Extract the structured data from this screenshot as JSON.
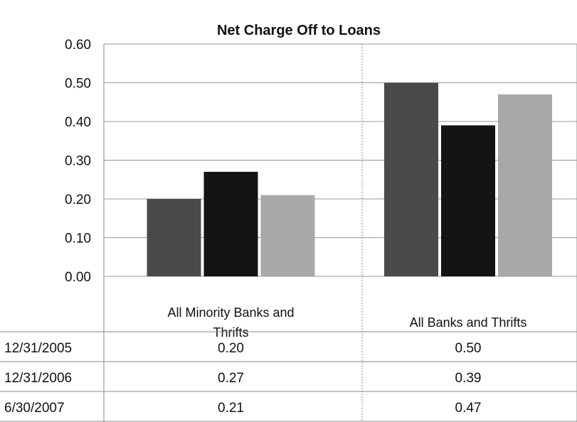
{
  "chart_data": {
    "type": "bar",
    "title": "Net Charge Off to Loans",
    "categories": [
      [
        "All Minority Banks and",
        "Thrifts"
      ],
      [
        "All Banks and Thrifts"
      ]
    ],
    "series": [
      {
        "name": "12/31/2005",
        "values": [
          0.2,
          0.5
        ],
        "color": "#4a4a4a"
      },
      {
        "name": "12/31/2006",
        "values": [
          0.27,
          0.39
        ],
        "color": "#141414"
      },
      {
        "name": "6/30/2007",
        "values": [
          0.21,
          0.47
        ],
        "color": "#a8a8a8"
      }
    ],
    "yticks": [
      "0.00",
      "0.10",
      "0.20",
      "0.30",
      "0.40",
      "0.50",
      "0.60"
    ],
    "ylim": [
      0,
      0.6
    ],
    "data_table": [
      [
        "0.20",
        "0.50"
      ],
      [
        "0.27",
        "0.39"
      ],
      [
        "0.21",
        "0.47"
      ]
    ],
    "legend": "data-table-rows",
    "grid": true
  }
}
